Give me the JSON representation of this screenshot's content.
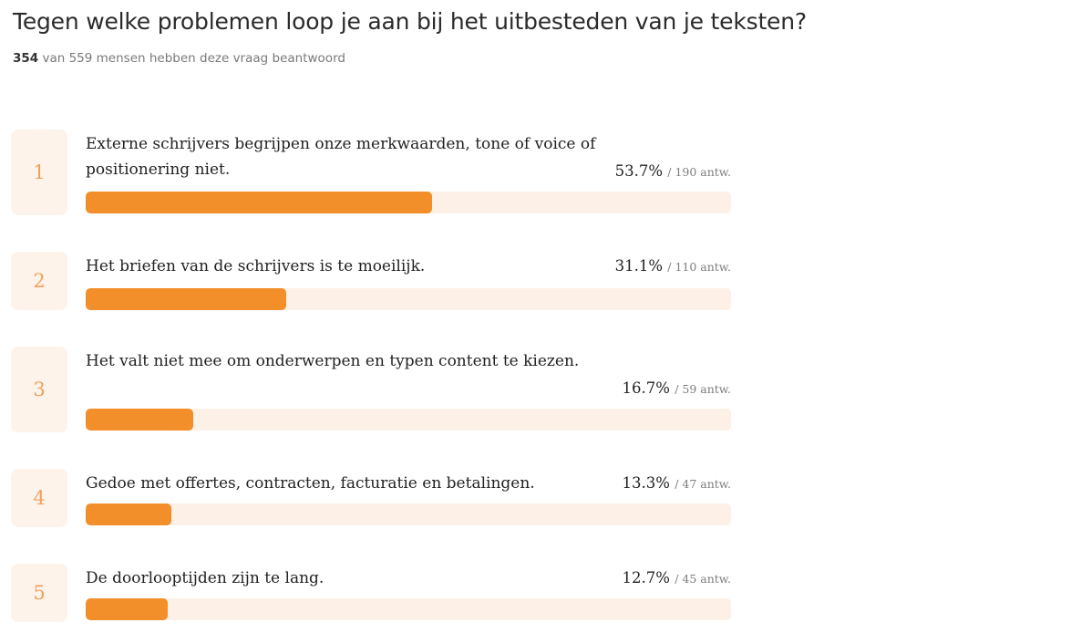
{
  "question": {
    "title": "Tegen welke problemen loop je aan bij het uitbesteden van je teksten?",
    "answered_count": "354",
    "answered_suffix": "van 559 mensen hebben deze vraag beantwoord"
  },
  "colors": {
    "bar_fill": "#f38f2a",
    "bar_track": "#fdf1e7",
    "rank_box": "#fdf3ea",
    "rank_text": "#f0a05a"
  },
  "chart_data": {
    "type": "bar",
    "orientation": "horizontal",
    "categories": [
      "Externe schrijvers begrijpen onze merkwaarden, tone of voice of positionering niet.",
      "Het briefen van de schrijvers is te moeilijk.",
      "Het valt niet mee om onderwerpen en typen content te kiezen.",
      "Gedoe met offertes, contracten, facturatie en betalingen.",
      "De doorlooptijden zijn te lang."
    ],
    "values": [
      53.7,
      31.1,
      16.7,
      13.3,
      12.7
    ],
    "xlim": [
      0,
      100
    ],
    "items": [
      {
        "rank": "1",
        "label": "Externe schrijvers begrijpen onze merkwaarden, tone of voice of positionering niet.",
        "percent_text": "53.7%",
        "count_text": "/ 190 antw.",
        "value": 53.7
      },
      {
        "rank": "2",
        "label": "Het briefen van de schrijvers is te moeilijk.",
        "percent_text": "31.1%",
        "count_text": "/ 110 antw.",
        "value": 31.1
      },
      {
        "rank": "3",
        "label": "Het valt niet mee om onderwerpen en typen content te kiezen.",
        "percent_text": "16.7%",
        "count_text": "/ 59 antw.",
        "value": 16.7
      },
      {
        "rank": "4",
        "label": "Gedoe met offertes, contracten, facturatie en betalingen.",
        "percent_text": "13.3%",
        "count_text": "/ 47 antw.",
        "value": 13.3
      },
      {
        "rank": "5",
        "label": "De doorlooptijden zijn te lang.",
        "percent_text": "12.7%",
        "count_text": "/ 45 antw.",
        "value": 12.7
      }
    ]
  }
}
